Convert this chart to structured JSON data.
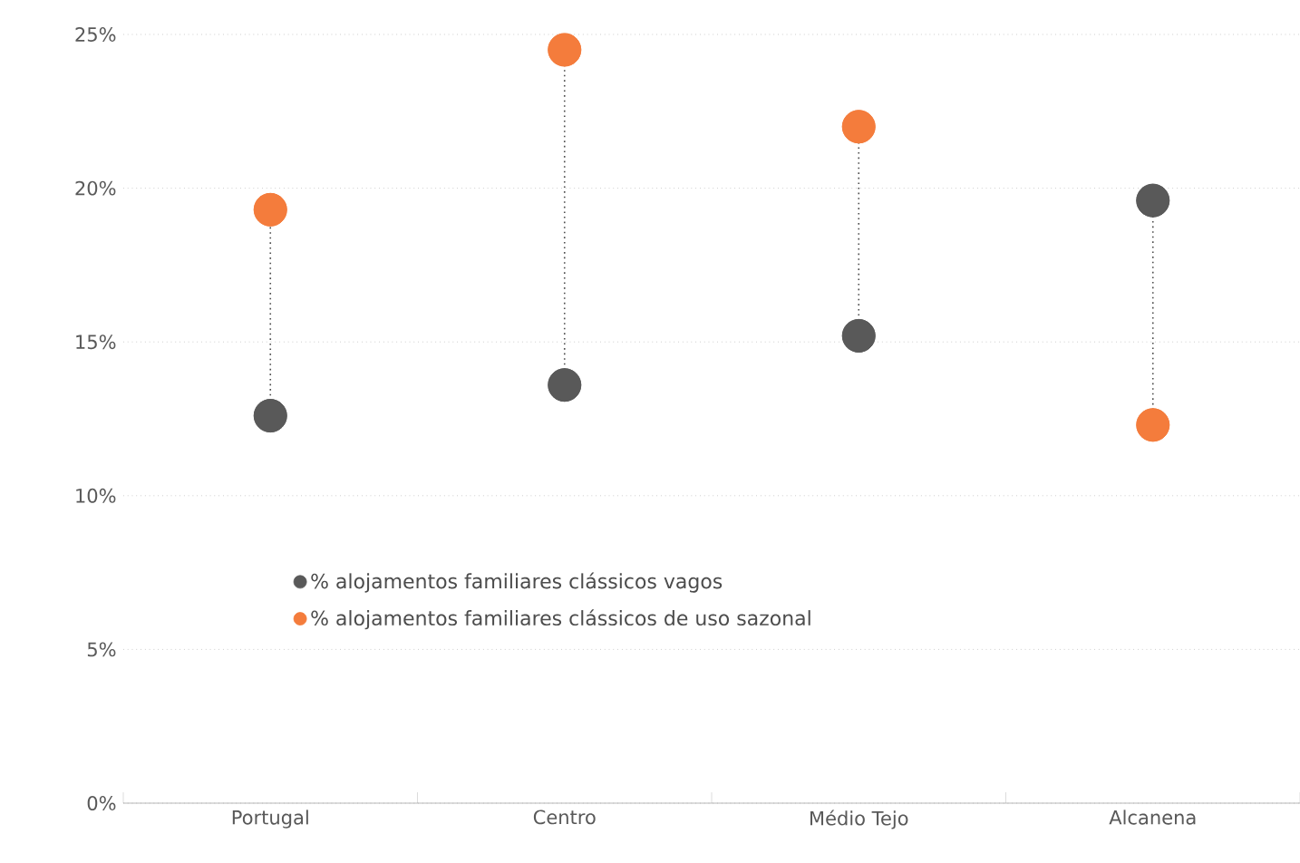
{
  "chart_data": {
    "type": "scatter",
    "categories": [
      "Portugal",
      "Centro",
      "Médio Tejo",
      "Alcanena"
    ],
    "series": [
      {
        "name": "% alojamentos familiares clássicos vagos",
        "color": "#595959",
        "values": [
          12.6,
          13.6,
          15.2,
          19.6
        ]
      },
      {
        "name": "% alojamentos familiares clássicos de uso sazonal",
        "color": "#f47c3c",
        "values": [
          19.3,
          24.5,
          22.0,
          12.3
        ]
      }
    ],
    "ylim": [
      0,
      25
    ],
    "yticks": [
      {
        "value": 0,
        "label": "0%"
      },
      {
        "value": 5,
        "label": "5%"
      },
      {
        "value": 10,
        "label": "10%"
      },
      {
        "value": 15,
        "label": "15%"
      },
      {
        "value": 20,
        "label": "20%"
      },
      {
        "value": 25,
        "label": "25%"
      }
    ],
    "grid": "y",
    "legend": "center"
  }
}
